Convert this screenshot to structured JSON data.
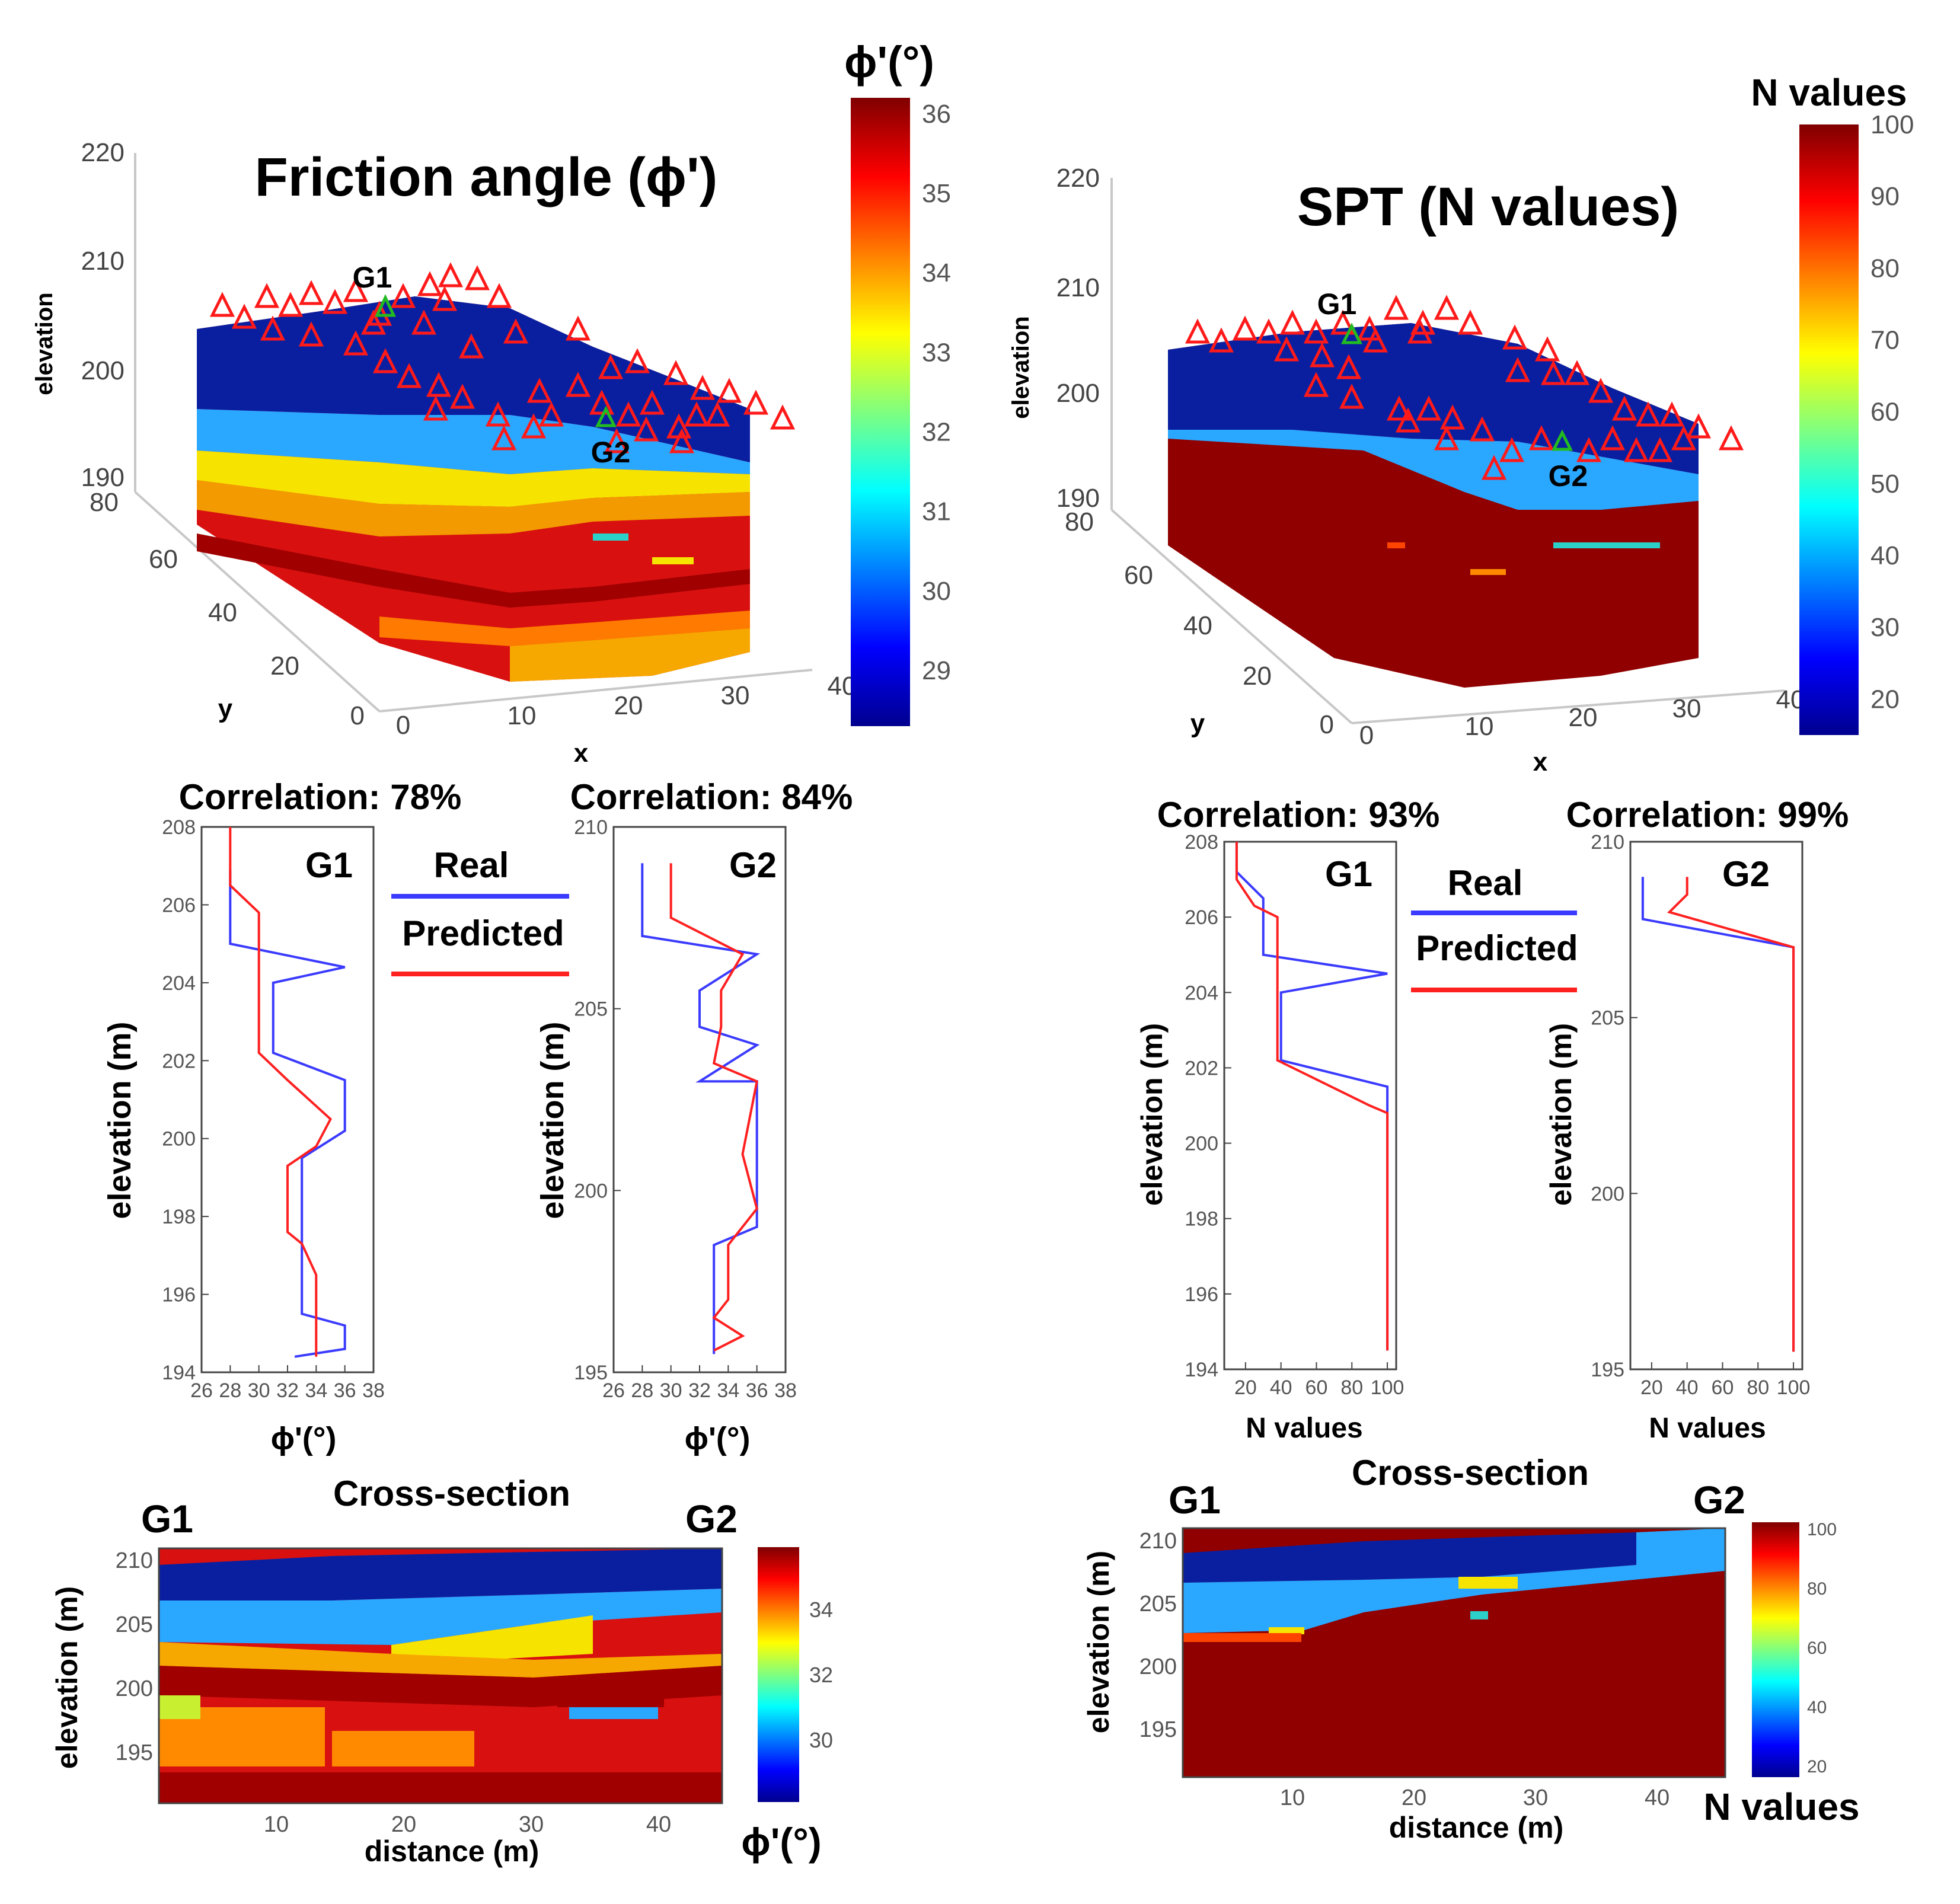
{
  "chart_data": {
    "type": "composite",
    "panels": [
      {
        "id": "friction",
        "title": "Friction angle (ϕ')",
        "block3d": {
          "type": "heatmap",
          "zlabel": "elevation",
          "xlabel": "x",
          "ylabel": "y",
          "zticks": [
            "190",
            "200",
            "210",
            "220"
          ],
          "yticks": [
            "80",
            "60",
            "40",
            "20",
            "0"
          ],
          "xticks": [
            "0",
            "10",
            "20",
            "30",
            "40"
          ],
          "boreholes": [
            "G1",
            "G2"
          ]
        },
        "colorbar": {
          "label": "ϕ'(°)",
          "ticks": [
            "36",
            "35",
            "34",
            "33",
            "32",
            "31",
            "30",
            "29"
          ],
          "range": [
            28.3,
            36.2
          ]
        },
        "profiles": [
          {
            "id": "G1",
            "correlation": "Correlation: 78%",
            "xlim": [
              26,
              38
            ],
            "ylim": [
              194,
              208
            ],
            "xticks": [
              "26",
              "28",
              "30",
              "32",
              "34",
              "36",
              "38"
            ],
            "yticks": [
              "194",
              "196",
              "198",
              "200",
              "202",
              "204",
              "206",
              "208"
            ],
            "ylabel": "elevation (m)",
            "real": [
              [
                28,
                206.9
              ],
              [
                28,
                205
              ],
              [
                36,
                204.4
              ],
              [
                31,
                204
              ],
              [
                31,
                202.2
              ],
              [
                36,
                201.5
              ],
              [
                36,
                200.2
              ],
              [
                33,
                199.5
              ],
              [
                33,
                195.5
              ],
              [
                36,
                195.2
              ],
              [
                36,
                194.6
              ],
              [
                32.5,
                194.4
              ]
            ],
            "predicted": [
              [
                28,
                208
              ],
              [
                28,
                206.5
              ],
              [
                30,
                205.8
              ],
              [
                30,
                202.2
              ],
              [
                32,
                201.5
              ],
              [
                35,
                200.5
              ],
              [
                34,
                199.8
              ],
              [
                32,
                199.3
              ],
              [
                32,
                197.6
              ],
              [
                33,
                197.3
              ],
              [
                34,
                196.5
              ],
              [
                34,
                194.4
              ]
            ]
          },
          {
            "id": "G2",
            "correlation": "Correlation: 84%",
            "xlim": [
              26,
              38
            ],
            "ylim": [
              195,
              210
            ],
            "xticks": [
              "26",
              "28",
              "30",
              "32",
              "34",
              "36",
              "38"
            ],
            "yticks": [
              "195",
              "200",
              "205",
              "210"
            ],
            "ylabel": "elevation (m)",
            "real": [
              [
                28,
                209
              ],
              [
                28,
                207
              ],
              [
                36,
                206.5
              ],
              [
                32,
                205.5
              ],
              [
                32,
                204.5
              ],
              [
                36,
                204
              ],
              [
                32,
                203
              ],
              [
                36,
                203
              ],
              [
                36,
                199
              ],
              [
                33,
                198.5
              ],
              [
                33,
                195.5
              ]
            ],
            "predicted": [
              [
                30,
                209
              ],
              [
                30,
                207.5
              ],
              [
                35,
                206.5
              ],
              [
                33.5,
                205.5
              ],
              [
                33.5,
                204.5
              ],
              [
                33,
                203.5
              ],
              [
                36,
                203
              ],
              [
                35,
                201
              ],
              [
                36,
                199.5
              ],
              [
                34,
                198.5
              ],
              [
                34,
                197
              ],
              [
                33,
                196.5
              ],
              [
                35,
                196
              ],
              [
                33,
                195.6
              ]
            ]
          }
        ],
        "legend": {
          "real": "Real",
          "predicted": "Predicted"
        },
        "profile_xlabel": "ϕ'(°)",
        "cross_section": {
          "title": "Cross-section",
          "left_label": "G1",
          "right_label": "G2",
          "xlabel": "distance (m)",
          "ylabel": "elevation (m)",
          "xticks": [
            "10",
            "20",
            "30",
            "40"
          ],
          "yticks": [
            "210",
            "205",
            "200",
            "195"
          ],
          "cb_ticks": [
            "34",
            "32",
            "30"
          ],
          "cb_label": "ϕ'(°)"
        }
      },
      {
        "id": "spt",
        "title": "SPT (N values)",
        "block3d": {
          "type": "heatmap",
          "zlabel": "elevation",
          "xlabel": "x",
          "ylabel": "y",
          "zticks": [
            "190",
            "200",
            "210",
            "220"
          ],
          "yticks": [
            "80",
            "60",
            "40",
            "20",
            "0"
          ],
          "xticks": [
            "0",
            "10",
            "20",
            "30",
            "40"
          ],
          "boreholes": [
            "G1",
            "G2"
          ]
        },
        "colorbar": {
          "label": "N values",
          "ticks": [
            "100",
            "90",
            "80",
            "70",
            "60",
            "50",
            "40",
            "30",
            "20"
          ],
          "range": [
            15,
            100
          ]
        },
        "profiles": [
          {
            "id": "G1",
            "correlation": "Correlation: 93%",
            "xlim": [
              8,
              105
            ],
            "ylim": [
              194,
              208
            ],
            "xticks": [
              "20",
              "40",
              "60",
              "80",
              "100"
            ],
            "yticks": [
              "194",
              "196",
              "198",
              "200",
              "202",
              "204",
              "206",
              "208"
            ],
            "ylabel": "elevation (m)",
            "real": [
              [
                15,
                208
              ],
              [
                15,
                207.2
              ],
              [
                30,
                206.5
              ],
              [
                30,
                205
              ],
              [
                100,
                204.5
              ],
              [
                40,
                204
              ],
              [
                40,
                202.2
              ],
              [
                100,
                201.5
              ],
              [
                100,
                194.5
              ]
            ],
            "predicted": [
              [
                15,
                208
              ],
              [
                15,
                207
              ],
              [
                25,
                206.3
              ],
              [
                38,
                206
              ],
              [
                38,
                202.2
              ],
              [
                90,
                201
              ],
              [
                100,
                200.8
              ],
              [
                100,
                194.5
              ]
            ]
          },
          {
            "id": "G2",
            "correlation": "Correlation: 99%",
            "xlim": [
              8,
              105
            ],
            "ylim": [
              195,
              210
            ],
            "xticks": [
              "20",
              "40",
              "60",
              "80",
              "100"
            ],
            "yticks": [
              "195",
              "200",
              "205",
              "210"
            ],
            "ylabel": "elevation (m)",
            "real": [
              [
                15,
                209
              ],
              [
                15,
                207.8
              ],
              [
                100,
                207
              ],
              [
                100,
                195.5
              ]
            ],
            "predicted": [
              [
                40,
                209
              ],
              [
                40,
                208.5
              ],
              [
                30,
                208
              ],
              [
                100,
                207
              ],
              [
                100,
                195.5
              ]
            ]
          }
        ],
        "legend": {
          "real": "Real",
          "predicted": "Predicted"
        },
        "profile_xlabel": "N values",
        "cross_section": {
          "title": "Cross-section",
          "left_label": "G1",
          "right_label": "G2",
          "xlabel": "distance (m)",
          "ylabel": "elevation (m)",
          "xticks": [
            "10",
            "20",
            "30",
            "40"
          ],
          "yticks": [
            "210",
            "205",
            "200",
            "195"
          ],
          "cb_ticks": [
            "100",
            "80",
            "60",
            "40",
            "20"
          ],
          "cb_label": "N values"
        }
      }
    ]
  },
  "colors": {
    "real": "#3b3bff",
    "predicted": "#ff2020",
    "marker": "#ff1a1a",
    "well": "#22bb22"
  }
}
